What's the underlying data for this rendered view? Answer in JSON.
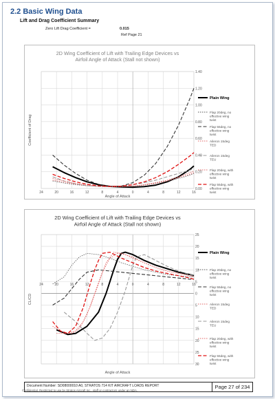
{
  "section": {
    "title": "2.2 Basic Wing Data",
    "subtitle": "Lift and Drag Coefficient Summary"
  },
  "zero_lift": {
    "label": "Zero Lift Drag Coefficient =",
    "value": "0.015",
    "ref": "Ref Page 21"
  },
  "series_style": [
    {
      "color": "#000000",
      "dash": "",
      "width": 2.0
    },
    {
      "color": "#555555",
      "dash": "1.5,1.5",
      "width": 0.8
    },
    {
      "color": "#333333",
      "dash": "5,2.5",
      "width": 1.1
    },
    {
      "color": "#e06666",
      "dash": "1.5,1.5",
      "width": 0.9
    },
    {
      "color": "#999999",
      "dash": "5,2.5",
      "width": 1.1
    },
    {
      "color": "#e06666",
      "dash": "1.5,1.5",
      "width": 0.9
    },
    {
      "color": "#e01010",
      "dash": "5,2.5",
      "width": 1.3
    }
  ],
  "chart_data": [
    {
      "type": "line",
      "title": "2D Wing Coefficient of Lift with Trailing Edge Devices vs Airfoil Angle of Attack (Stall not shown)",
      "xlabel": "Angle of Attack",
      "ylabel": "Coefficient of Drag",
      "x_ticks": [
        "-24",
        "-20",
        "-16",
        "-12",
        "-8",
        "-4",
        "0",
        "4",
        "8",
        "12",
        "16"
      ],
      "x_tick_labels": [
        "24",
        "20",
        "16",
        "12",
        "8",
        "4",
        "0",
        "4",
        "8",
        "12",
        "16"
      ],
      "y_ticks": [
        "0.00",
        "0.20",
        "0.40",
        "0.60",
        "0.80",
        "1.00",
        "1.20",
        "1.40"
      ],
      "xlim": [
        -24,
        16
      ],
      "ylim": [
        0,
        1.4
      ],
      "grid": true,
      "legend": "right",
      "series": [
        {
          "name": "Plain Wing",
          "x": [
            -21,
            -18,
            -15,
            -12,
            -9,
            -6,
            -3,
            0,
            3,
            6,
            9,
            12,
            15,
            16
          ],
          "values": [
            0.26,
            0.19,
            0.13,
            0.08,
            0.045,
            0.025,
            0.018,
            0.016,
            0.022,
            0.04,
            0.08,
            0.14,
            0.23,
            0.27
          ]
        },
        {
          "name": "Flap 20deg, no effective wing twist",
          "x": [
            -21,
            -18,
            -15,
            -12,
            -9,
            -6,
            -3,
            0,
            3,
            6,
            9,
            12,
            15,
            16
          ],
          "values": [
            0.09,
            0.065,
            0.045,
            0.032,
            0.025,
            0.022,
            0.024,
            0.03,
            0.045,
            0.065,
            0.09,
            0.12,
            0.16,
            0.18
          ]
        },
        {
          "name": "Flap 55deg, no effective wing twist",
          "x": [
            -21,
            -18,
            -15,
            -12,
            -9,
            -6,
            -3,
            0,
            3,
            6,
            9,
            12,
            15,
            16
          ],
          "values": [
            0.4,
            0.28,
            0.18,
            0.1,
            0.05,
            0.025,
            0.03,
            0.07,
            0.16,
            0.3,
            0.5,
            0.76,
            1.08,
            1.2
          ]
        },
        {
          "name": "Aileron 15deg TED",
          "x": [
            -21,
            -18,
            -15,
            -12,
            -9,
            -6,
            -3,
            0,
            3,
            6,
            9,
            12,
            15,
            16
          ],
          "values": [
            0.1,
            0.075,
            0.05,
            0.035,
            0.025,
            0.02,
            0.022,
            0.028,
            0.04,
            0.06,
            0.09,
            0.13,
            0.17,
            0.19
          ]
        },
        {
          "name": "Aileron 15deg TEU",
          "x": [
            -21,
            -18,
            -15,
            -12,
            -9,
            -6,
            -3,
            0,
            3,
            6,
            9,
            12,
            15,
            16
          ],
          "values": [
            0.14,
            0.09,
            0.055,
            0.035,
            0.025,
            0.022,
            0.03,
            0.045,
            0.07,
            0.1,
            0.14,
            0.18,
            0.22,
            0.24
          ]
        },
        {
          "name": "Flap 20deg, with effective wing twist",
          "x": [
            -21,
            -18,
            -15,
            -12,
            -9,
            -6,
            -3,
            0,
            3,
            6,
            9,
            12,
            15,
            16
          ],
          "values": [
            0.12,
            0.09,
            0.06,
            0.04,
            0.03,
            0.025,
            0.025,
            0.03,
            0.045,
            0.07,
            0.1,
            0.14,
            0.19,
            0.21
          ]
        },
        {
          "name": "Flap 55deg, with effective wing twist",
          "x": [
            -21,
            -18,
            -15,
            -12,
            -9,
            -6,
            -3,
            0,
            3,
            6,
            9,
            12,
            15,
            16
          ],
          "values": [
            0.17,
            0.12,
            0.08,
            0.05,
            0.032,
            0.025,
            0.028,
            0.045,
            0.08,
            0.13,
            0.2,
            0.29,
            0.39,
            0.43
          ]
        }
      ]
    },
    {
      "type": "line",
      "title": "2D Wing Coefficient of Lift with Trailing Edge Devices vs Airfoil Angle of Attack (Stall not shown)",
      "xlabel": "Angle of Attack",
      "ylabel": "CL/CD",
      "x_ticks": [
        "-24",
        "-20",
        "-16",
        "-12",
        "-8",
        "-4",
        "0",
        "4",
        "8",
        "12",
        "16"
      ],
      "x_tick_labels": [
        "24",
        "20",
        "16",
        "12",
        "8",
        "4",
        "0",
        "4",
        "8",
        "12",
        "16"
      ],
      "y_ticks": [
        "-30",
        "-25",
        "-20",
        "-15",
        "-10",
        "-5",
        "0",
        "5",
        "10",
        "15",
        "20",
        "25"
      ],
      "y_tick_labels": [
        "30",
        "25",
        "20",
        "15",
        "10",
        "5",
        "0",
        "5",
        "10",
        "15",
        "20",
        "25"
      ],
      "xlim": [
        -24,
        16
      ],
      "ylim": [
        -30,
        25
      ],
      "grid": true,
      "legend": "right",
      "series": [
        {
          "name": "Plain Wing",
          "x": [
            -20,
            -17,
            -15,
            -12,
            -9,
            -7,
            -5,
            -4,
            -3,
            -2,
            0,
            3,
            6,
            9,
            12,
            15,
            16
          ],
          "values": [
            -15.5,
            -17.5,
            -17,
            -14,
            -8,
            0,
            10,
            14.5,
            17,
            17.5,
            16.5,
            14,
            12,
            10.5,
            9,
            8,
            7.5
          ]
        },
        {
          "name": "Flap 20deg, no effective wing twist",
          "x": [
            -21,
            -18,
            -16,
            -14,
            -12,
            -9,
            -6,
            -3,
            0,
            3,
            6,
            9,
            12,
            15,
            16
          ],
          "values": [
            4,
            7,
            12,
            15.5,
            17,
            16.5,
            15,
            13,
            11.5,
            10,
            9,
            8,
            7.5,
            7,
            7
          ]
        },
        {
          "name": "Flap 55deg, no effective wing twist",
          "x": [
            -21,
            -18,
            -16,
            -14,
            -12,
            -9,
            -6,
            -3,
            0,
            3,
            6,
            9,
            12,
            15,
            16
          ],
          "values": [
            -5,
            -2,
            2,
            6,
            9,
            10,
            9.5,
            9,
            8.5,
            8,
            7.5,
            7,
            6.5,
            6,
            6
          ]
        },
        {
          "name": "Aileron 15deg TED",
          "x": [
            -20,
            -17,
            -15,
            -13,
            -11,
            -9,
            -7,
            -5,
            -3,
            0,
            3,
            6,
            9,
            12,
            15,
            16
          ],
          "values": [
            -17,
            -17,
            -16,
            -12,
            -5,
            4,
            13,
            17.5,
            17,
            15.5,
            13,
            11,
            9.5,
            8.5,
            7.5,
            7
          ]
        },
        {
          "name": "Aileron 15deg TEU",
          "x": [
            -18,
            -15,
            -12,
            -10,
            -8,
            -6,
            -4,
            -2,
            0,
            1,
            3,
            6,
            9,
            12,
            15,
            16
          ],
          "values": [
            -8,
            -12,
            -17,
            -20,
            -19,
            -15,
            -8,
            1,
            12,
            15.5,
            16.5,
            14,
            11.5,
            9.5,
            8,
            7.5
          ]
        },
        {
          "name": "Flap 20deg, with effective wing twist",
          "x": [
            -21,
            -18,
            -16,
            -14,
            -12,
            -10,
            -8,
            -6,
            -4,
            -2,
            0,
            3,
            6,
            9,
            12,
            15,
            16
          ],
          "values": [
            -14,
            -17,
            -17,
            -15,
            -9,
            0,
            9,
            15,
            17,
            16.5,
            15,
            13,
            11,
            9.5,
            8.5,
            7.5,
            7
          ]
        },
        {
          "name": "Flap 55deg, with effective wing twist",
          "x": [
            -21,
            -19,
            -17,
            -15,
            -13,
            -11,
            -10,
            -9,
            -8,
            -6,
            -3,
            0,
            3,
            6,
            9,
            12,
            15,
            16
          ],
          "values": [
            -12,
            -16,
            -17,
            -14,
            -6,
            5,
            10,
            14,
            17,
            17.5,
            15,
            13,
            11,
            9.5,
            8.5,
            7.5,
            6.5,
            6
          ]
        }
      ]
    }
  ],
  "footer": {
    "document_number": "Document Number: SD08000010 A0, STRATOS 714 KIT AIRCRAFT LOADS REPORT",
    "page": "Page 27 of 234",
    "confidential": "Confidential. Restricted to use by Stratos Aircraft Inc., staff or contractors under an NDA."
  }
}
